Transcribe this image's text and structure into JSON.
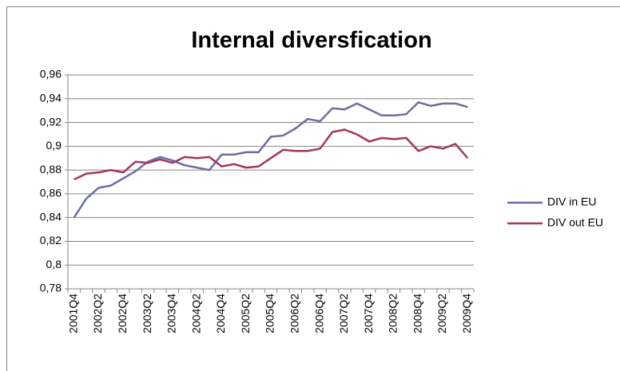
{
  "chart_data": {
    "type": "line",
    "title": "Internal diversfication",
    "categories": [
      "2001Q4",
      null,
      "2002Q2",
      null,
      "2002Q4",
      null,
      "2003Q2",
      null,
      "2003Q4",
      null,
      "2004Q2",
      null,
      "2004Q4",
      null,
      "2005Q2",
      null,
      "2005Q4",
      null,
      "2006Q2",
      null,
      "2006Q4",
      null,
      "2007Q2",
      null,
      "2007Q4",
      null,
      "2008Q2",
      null,
      "2008Q4",
      null,
      "2009Q2",
      null,
      "2009Q4"
    ],
    "series": [
      {
        "name": "DIV in EU",
        "color": "#6b6ca9",
        "values": [
          0.84,
          0.856,
          0.865,
          0.867,
          0.873,
          0.879,
          0.887,
          0.891,
          0.888,
          0.884,
          0.882,
          0.88,
          0.893,
          0.893,
          0.895,
          0.895,
          0.908,
          0.909,
          0.915,
          0.923,
          0.921,
          0.932,
          0.931,
          0.936,
          0.931,
          0.926,
          0.926,
          0.927,
          0.937,
          0.934,
          0.936,
          0.936,
          0.933
        ]
      },
      {
        "name": "DIV out EU",
        "color": "#a33560",
        "values": [
          0.872,
          0.877,
          0.878,
          0.88,
          0.878,
          0.887,
          0.886,
          0.889,
          0.886,
          0.891,
          0.89,
          0.891,
          0.883,
          0.885,
          0.882,
          0.883,
          0.89,
          0.897,
          0.896,
          0.896,
          0.898,
          0.912,
          0.914,
          0.91,
          0.904,
          0.907,
          0.906,
          0.907,
          0.896,
          0.9,
          0.898,
          0.902,
          0.89
        ]
      }
    ],
    "ylim": [
      0.78,
      0.96
    ],
    "yticks": [
      {
        "value": 0.78,
        "label": "0,78"
      },
      {
        "value": 0.8,
        "label": "0,8"
      },
      {
        "value": 0.82,
        "label": "0,82"
      },
      {
        "value": 0.84,
        "label": "0,84"
      },
      {
        "value": 0.86,
        "label": "0,86"
      },
      {
        "value": 0.88,
        "label": "0,88"
      },
      {
        "value": 0.9,
        "label": "0,9"
      },
      {
        "value": 0.92,
        "label": "0,92"
      },
      {
        "value": 0.94,
        "label": "0,94"
      },
      {
        "value": 0.96,
        "label": "0,96"
      }
    ],
    "grid": true,
    "legend": "right"
  }
}
